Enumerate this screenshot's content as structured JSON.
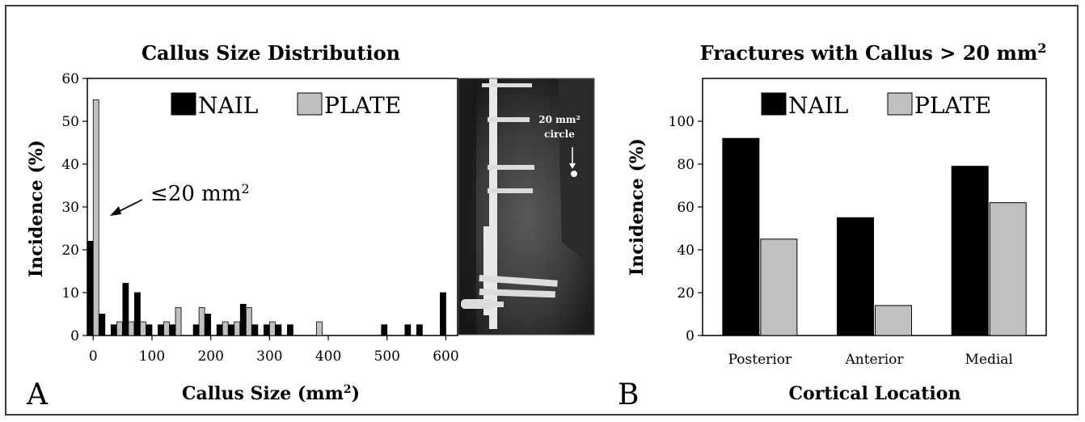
{
  "panels": {
    "a_letter": "A",
    "b_letter": "B"
  },
  "colors": {
    "nail": "#000000",
    "plate": "#c0c0c0"
  },
  "xray": {
    "label_line1": "20 mm²",
    "label_line2": "circle"
  },
  "annotation": {
    "text": "≤20 mm",
    "superscript": "2"
  },
  "chart_data": [
    {
      "type": "bar",
      "title": "Callus Size Distribution",
      "xlabel": "Callus Size (mm",
      "xlabel_sup": "2",
      "xlabel_end": ")",
      "ylabel": "Incidence (%)",
      "xlim": [
        -10,
        620
      ],
      "ylim": [
        0,
        60
      ],
      "yticks": [
        "0",
        "10",
        "20",
        "30",
        "40",
        "50",
        "60"
      ],
      "xticks": [
        "0",
        "100",
        "200",
        "300",
        "400",
        "500",
        "600"
      ],
      "legend_position": "top",
      "x": [
        0,
        20,
        40,
        60,
        80,
        100,
        120,
        140,
        160,
        180,
        200,
        220,
        240,
        260,
        280,
        300,
        320,
        340,
        380,
        500,
        540,
        560,
        600
      ],
      "series": [
        {
          "name": "NAIL",
          "values": [
            22,
            5,
            2.5,
            12.2,
            10,
            2.5,
            2.5,
            2.5,
            0,
            2.5,
            5,
            2.5,
            2.5,
            7.3,
            2.5,
            2.5,
            2.5,
            2.5,
            0,
            2.5,
            2.5,
            2.5,
            10
          ]
        },
        {
          "name": "PLATE",
          "values": [
            55,
            0,
            3.2,
            3.2,
            3.2,
            0,
            3.2,
            6.5,
            0,
            6.5,
            0,
            3.2,
            3.2,
            6.5,
            0,
            3.2,
            0,
            0,
            3.2,
            0,
            0,
            0,
            0
          ]
        }
      ]
    },
    {
      "type": "bar",
      "title": "Fractures with Callus > 20 mm",
      "title_sup": "2",
      "xlabel": "Cortical Location",
      "ylabel": "Incidence (%)",
      "ylim": [
        0,
        120
      ],
      "yticks": [
        "0",
        "20",
        "40",
        "60",
        "80",
        "100"
      ],
      "legend_position": "top",
      "categories": [
        "Posterior",
        "Anterior",
        "Medial"
      ],
      "series": [
        {
          "name": "NAIL",
          "values": [
            92,
            55,
            79
          ]
        },
        {
          "name": "PLATE",
          "values": [
            45,
            14,
            62
          ]
        }
      ]
    }
  ]
}
